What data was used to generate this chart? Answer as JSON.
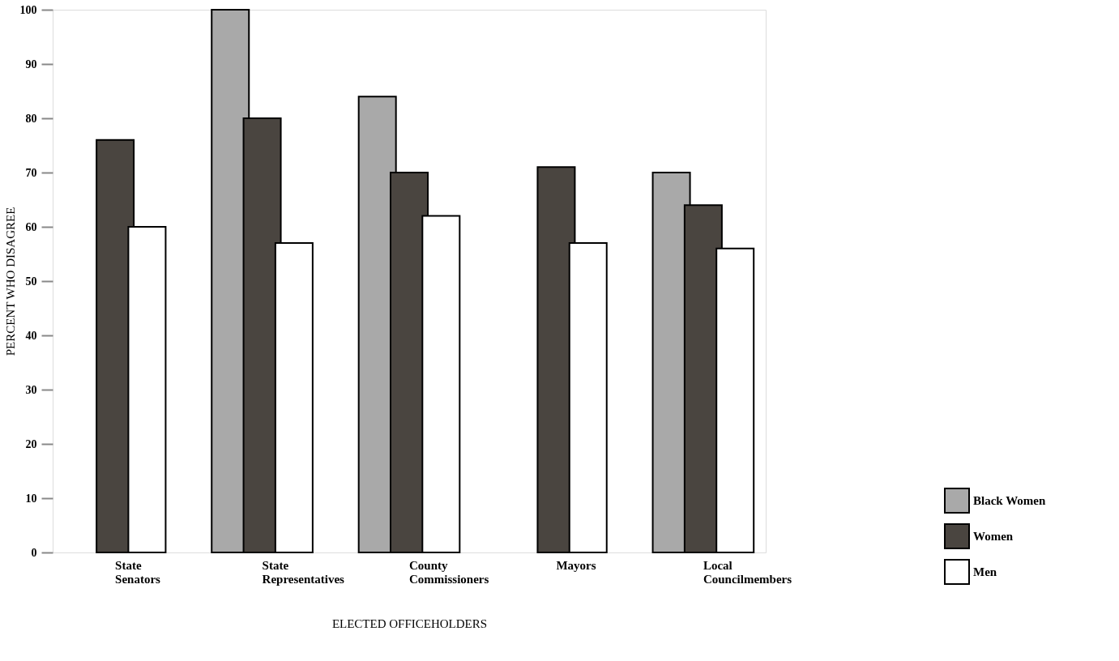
{
  "chart_data": {
    "type": "bar",
    "xlabel": "ELECTED OFFICEHOLDERS",
    "ylabel": "PERCENT WHO DISAGREE",
    "categories": [
      "State Senators",
      "State Representatives",
      "County Commissioners",
      "Mayors",
      "Local Councilmembers"
    ],
    "series": [
      {
        "name": "Black Women",
        "color": "#a9a9a9",
        "values": [
          null,
          100,
          84,
          null,
          70
        ]
      },
      {
        "name": "Women",
        "color": "#4a4540",
        "values": [
          76,
          80,
          70,
          71,
          64
        ]
      },
      {
        "name": "Men",
        "color": "#ffffff",
        "values": [
          60,
          57,
          62,
          57,
          56
        ]
      }
    ],
    "ylim": [
      0,
      100
    ],
    "yticks": [
      0,
      10,
      20,
      30,
      40,
      50,
      60,
      70,
      80,
      90,
      100
    ],
    "grid": false,
    "legend": "bottom right"
  }
}
